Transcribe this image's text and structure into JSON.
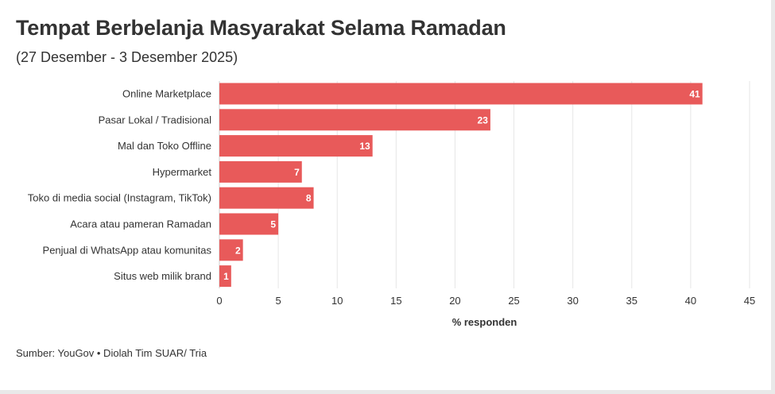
{
  "chart_data": {
    "type": "bar",
    "orientation": "horizontal",
    "title": "Tempat Berbelanja Masyarakat Selama Ramadan",
    "subtitle": "(27 Desember - 3 Desember 2025)",
    "categories": [
      "Online Marketplace",
      "Pasar Lokal / Tradisional",
      "Mal dan Toko Offline",
      "Hypermarket",
      "Toko di media social (Instagram, TikTok)",
      "Acara atau pameran Ramadan",
      "Penjual di WhatsApp atau komunitas",
      "Situs web milik brand"
    ],
    "values": [
      41,
      23,
      13,
      7,
      8,
      5,
      2,
      1
    ],
    "xlabel": "% responden",
    "ylabel": "",
    "xlim": [
      0,
      45
    ],
    "xticks": [
      0,
      5,
      10,
      15,
      20,
      25,
      30,
      35,
      40,
      45
    ],
    "grid": true,
    "bar_color": "#e85a5a",
    "grid_color": "#e6e6e6"
  },
  "source": "Sumber: YouGov • Diolah Tim SUAR/ Tria"
}
